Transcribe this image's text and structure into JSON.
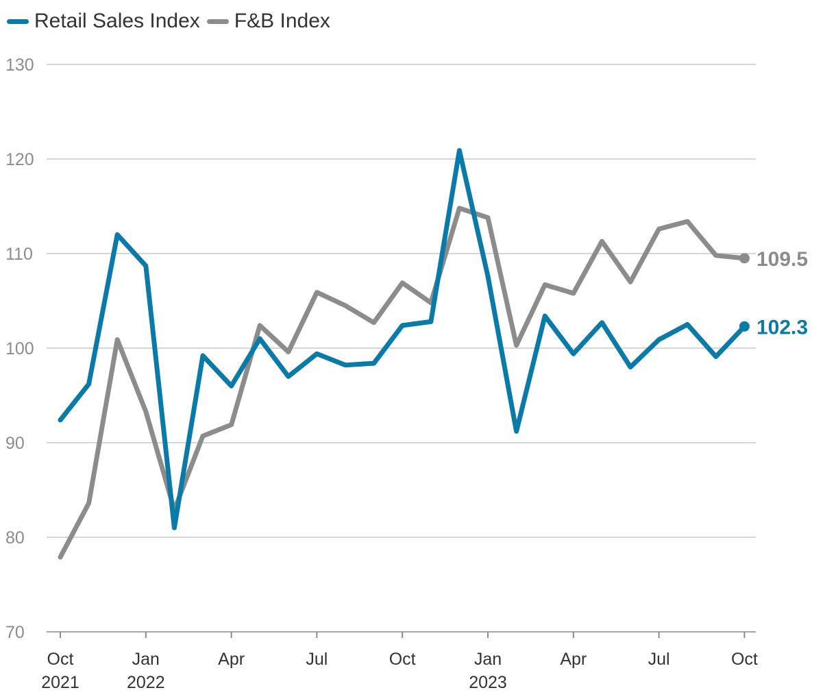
{
  "chart_data": {
    "type": "line",
    "title": "",
    "xlabel": "",
    "ylabel": "",
    "ylim": [
      70,
      130
    ],
    "yticks": [
      70,
      80,
      90,
      100,
      110,
      120,
      130
    ],
    "grid": true,
    "legend_position": "top-left",
    "x_ticks": [
      {
        "index": 0,
        "month": "Oct",
        "year": "2021"
      },
      {
        "index": 3,
        "month": "Jan",
        "year": "2022"
      },
      {
        "index": 6,
        "month": "Apr",
        "year": ""
      },
      {
        "index": 9,
        "month": "Jul",
        "year": ""
      },
      {
        "index": 12,
        "month": "Oct",
        "year": ""
      },
      {
        "index": 15,
        "month": "Jan",
        "year": "2023"
      },
      {
        "index": 18,
        "month": "Apr",
        "year": ""
      },
      {
        "index": 21,
        "month": "Jul",
        "year": ""
      },
      {
        "index": 24,
        "month": "Oct",
        "year": ""
      }
    ],
    "series": [
      {
        "name": "Retail Sales Index",
        "color": "#0a7aa8",
        "end_label": "102.3",
        "values": [
          92.4,
          96.2,
          112.0,
          108.7,
          81.0,
          99.2,
          96.0,
          101.0,
          97.0,
          99.4,
          98.2,
          98.4,
          102.4,
          102.8,
          120.9,
          107.6,
          91.2,
          103.4,
          99.4,
          102.7,
          98.0,
          100.9,
          102.5,
          99.1,
          102.3
        ]
      },
      {
        "name": "F&B Index",
        "color": "#8c8c8c",
        "end_label": "109.5",
        "values": [
          77.9,
          83.6,
          100.9,
          93.3,
          82.9,
          90.7,
          91.9,
          102.4,
          99.6,
          105.9,
          104.5,
          102.7,
          106.9,
          104.8,
          114.8,
          113.8,
          100.3,
          106.7,
          105.8,
          111.3,
          107.0,
          112.6,
          113.4,
          109.8,
          109.5
        ]
      }
    ]
  }
}
